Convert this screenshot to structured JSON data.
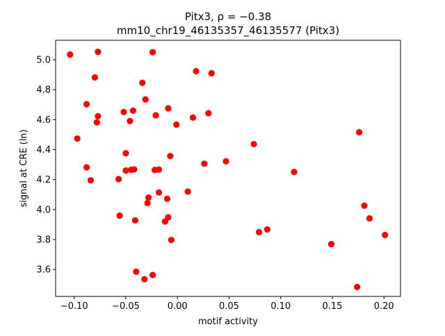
{
  "chart_data": {
    "type": "scatter",
    "title_line1": "Pitx3, ρ = −0.38",
    "title_line2": "mm10_chr19_46135357_46135577 (Pitx3)",
    "xlabel": "motif activity",
    "ylabel": "signal at CRE (ln)",
    "xlim": [
      -0.118,
      0.216
    ],
    "ylim": [
      3.42,
      5.13
    ],
    "xticks": [
      -0.1,
      -0.05,
      0.0,
      0.05,
      0.1,
      0.15,
      0.2
    ],
    "xtick_labels": [
      "−0.10",
      "−0.05",
      "0.00",
      "0.05",
      "0.10",
      "0.15",
      "0.20"
    ],
    "yticks": [
      3.6,
      3.8,
      4.0,
      4.2,
      4.4,
      4.6,
      4.8,
      5.0
    ],
    "ytick_labels": [
      "3.6",
      "3.8",
      "4.0",
      "4.2",
      "4.4",
      "4.6",
      "4.8",
      "5.0"
    ],
    "marker_color": "#ff0000",
    "grid": false,
    "points": [
      {
        "x": -0.104,
        "y": 5.035
      },
      {
        "x": -0.077,
        "y": 5.053
      },
      {
        "x": -0.024,
        "y": 5.05
      },
      {
        "x": -0.08,
        "y": 4.882
      },
      {
        "x": 0.018,
        "y": 4.924
      },
      {
        "x": 0.033,
        "y": 4.91
      },
      {
        "x": -0.034,
        "y": 4.846
      },
      {
        "x": -0.088,
        "y": 4.703
      },
      {
        "x": -0.031,
        "y": 4.735
      },
      {
        "x": -0.009,
        "y": 4.676
      },
      {
        "x": -0.052,
        "y": 4.651
      },
      {
        "x": -0.043,
        "y": 4.66
      },
      {
        "x": -0.077,
        "y": 4.623
      },
      {
        "x": -0.021,
        "y": 4.629
      },
      {
        "x": 0.03,
        "y": 4.643
      },
      {
        "x": 0.015,
        "y": 4.614
      },
      {
        "x": -0.078,
        "y": 4.582
      },
      {
        "x": -0.046,
        "y": 4.591
      },
      {
        "x": -0.001,
        "y": 4.567
      },
      {
        "x": 0.176,
        "y": 4.516
      },
      {
        "x": -0.097,
        "y": 4.474
      },
      {
        "x": 0.074,
        "y": 4.437
      },
      {
        "x": -0.05,
        "y": 4.376
      },
      {
        "x": -0.007,
        "y": 4.357
      },
      {
        "x": 0.047,
        "y": 4.322
      },
      {
        "x": 0.026,
        "y": 4.306
      },
      {
        "x": -0.088,
        "y": 4.282
      },
      {
        "x": -0.05,
        "y": 4.26
      },
      {
        "x": -0.045,
        "y": 4.265
      },
      {
        "x": -0.042,
        "y": 4.268
      },
      {
        "x": -0.022,
        "y": 4.264
      },
      {
        "x": -0.018,
        "y": 4.267
      },
      {
        "x": 0.113,
        "y": 4.251
      },
      {
        "x": -0.084,
        "y": 4.195
      },
      {
        "x": -0.057,
        "y": 4.203
      },
      {
        "x": -0.018,
        "y": 4.114
      },
      {
        "x": 0.01,
        "y": 4.12
      },
      {
        "x": -0.028,
        "y": 4.08
      },
      {
        "x": -0.01,
        "y": 4.072
      },
      {
        "x": -0.029,
        "y": 4.043
      },
      {
        "x": 0.181,
        "y": 4.026
      },
      {
        "x": -0.056,
        "y": 3.959
      },
      {
        "x": -0.009,
        "y": 3.948
      },
      {
        "x": 0.186,
        "y": 3.941
      },
      {
        "x": -0.041,
        "y": 3.928
      },
      {
        "x": -0.012,
        "y": 3.92
      },
      {
        "x": 0.087,
        "y": 3.867
      },
      {
        "x": 0.079,
        "y": 3.849
      },
      {
        "x": 0.201,
        "y": 3.83
      },
      {
        "x": -0.006,
        "y": 3.797
      },
      {
        "x": 0.149,
        "y": 3.769
      },
      {
        "x": -0.04,
        "y": 3.585
      },
      {
        "x": -0.024,
        "y": 3.563
      },
      {
        "x": -0.032,
        "y": 3.535
      },
      {
        "x": 0.174,
        "y": 3.483
      }
    ]
  }
}
